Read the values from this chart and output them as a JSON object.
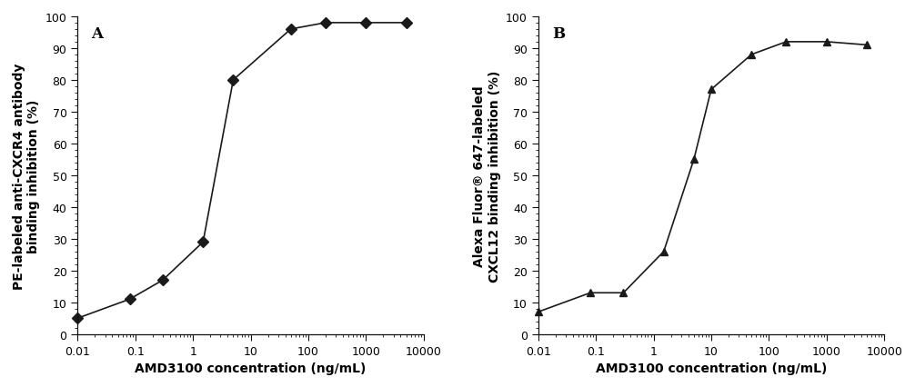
{
  "panel_A": {
    "x": [
      0.01,
      0.08,
      0.3,
      1.5,
      5,
      50,
      200,
      1000,
      5000
    ],
    "y": [
      5,
      11,
      17,
      29,
      80,
      96,
      98,
      98,
      98
    ],
    "marker": "D",
    "xlabel": "AMD3100 concentration (ng/mL)",
    "ylabel_line1": "PE-labeled anti-CXCR4 antibody",
    "ylabel_line2": "binding inhibition (%)",
    "label": "A",
    "xlim": [
      0.01,
      10000
    ],
    "ylim": [
      0,
      100
    ]
  },
  "panel_B": {
    "x": [
      0.01,
      0.08,
      0.3,
      1.5,
      5,
      10,
      50,
      200,
      1000,
      5000
    ],
    "y": [
      7,
      13,
      13,
      26,
      55,
      77,
      88,
      92,
      92,
      91
    ],
    "marker": "^",
    "xlabel": "AMD3100 concentration (ng/mL)",
    "ylabel_line1": "Alexa Fluor® 647-labeled",
    "ylabel_line2": "CXCL12 binding inhibition (%)",
    "label": "B",
    "xlim": [
      0.01,
      10000
    ],
    "ylim": [
      0,
      100
    ]
  },
  "background_color": "#ffffff",
  "plot_bg": "#ffffff",
  "line_color": "#1a1a1a",
  "marker_color": "#1a1a1a",
  "marker_size": 6,
  "linewidth": 1.2,
  "tick_fontsize": 9,
  "label_fontsize": 10,
  "panel_label_fontsize": 12,
  "xtick_labels": [
    "0.01",
    "0.1",
    "1",
    "10",
    "100",
    "1000",
    "10000"
  ],
  "xtick_positions": [
    0.01,
    0.1,
    1,
    10,
    100,
    1000,
    10000
  ]
}
